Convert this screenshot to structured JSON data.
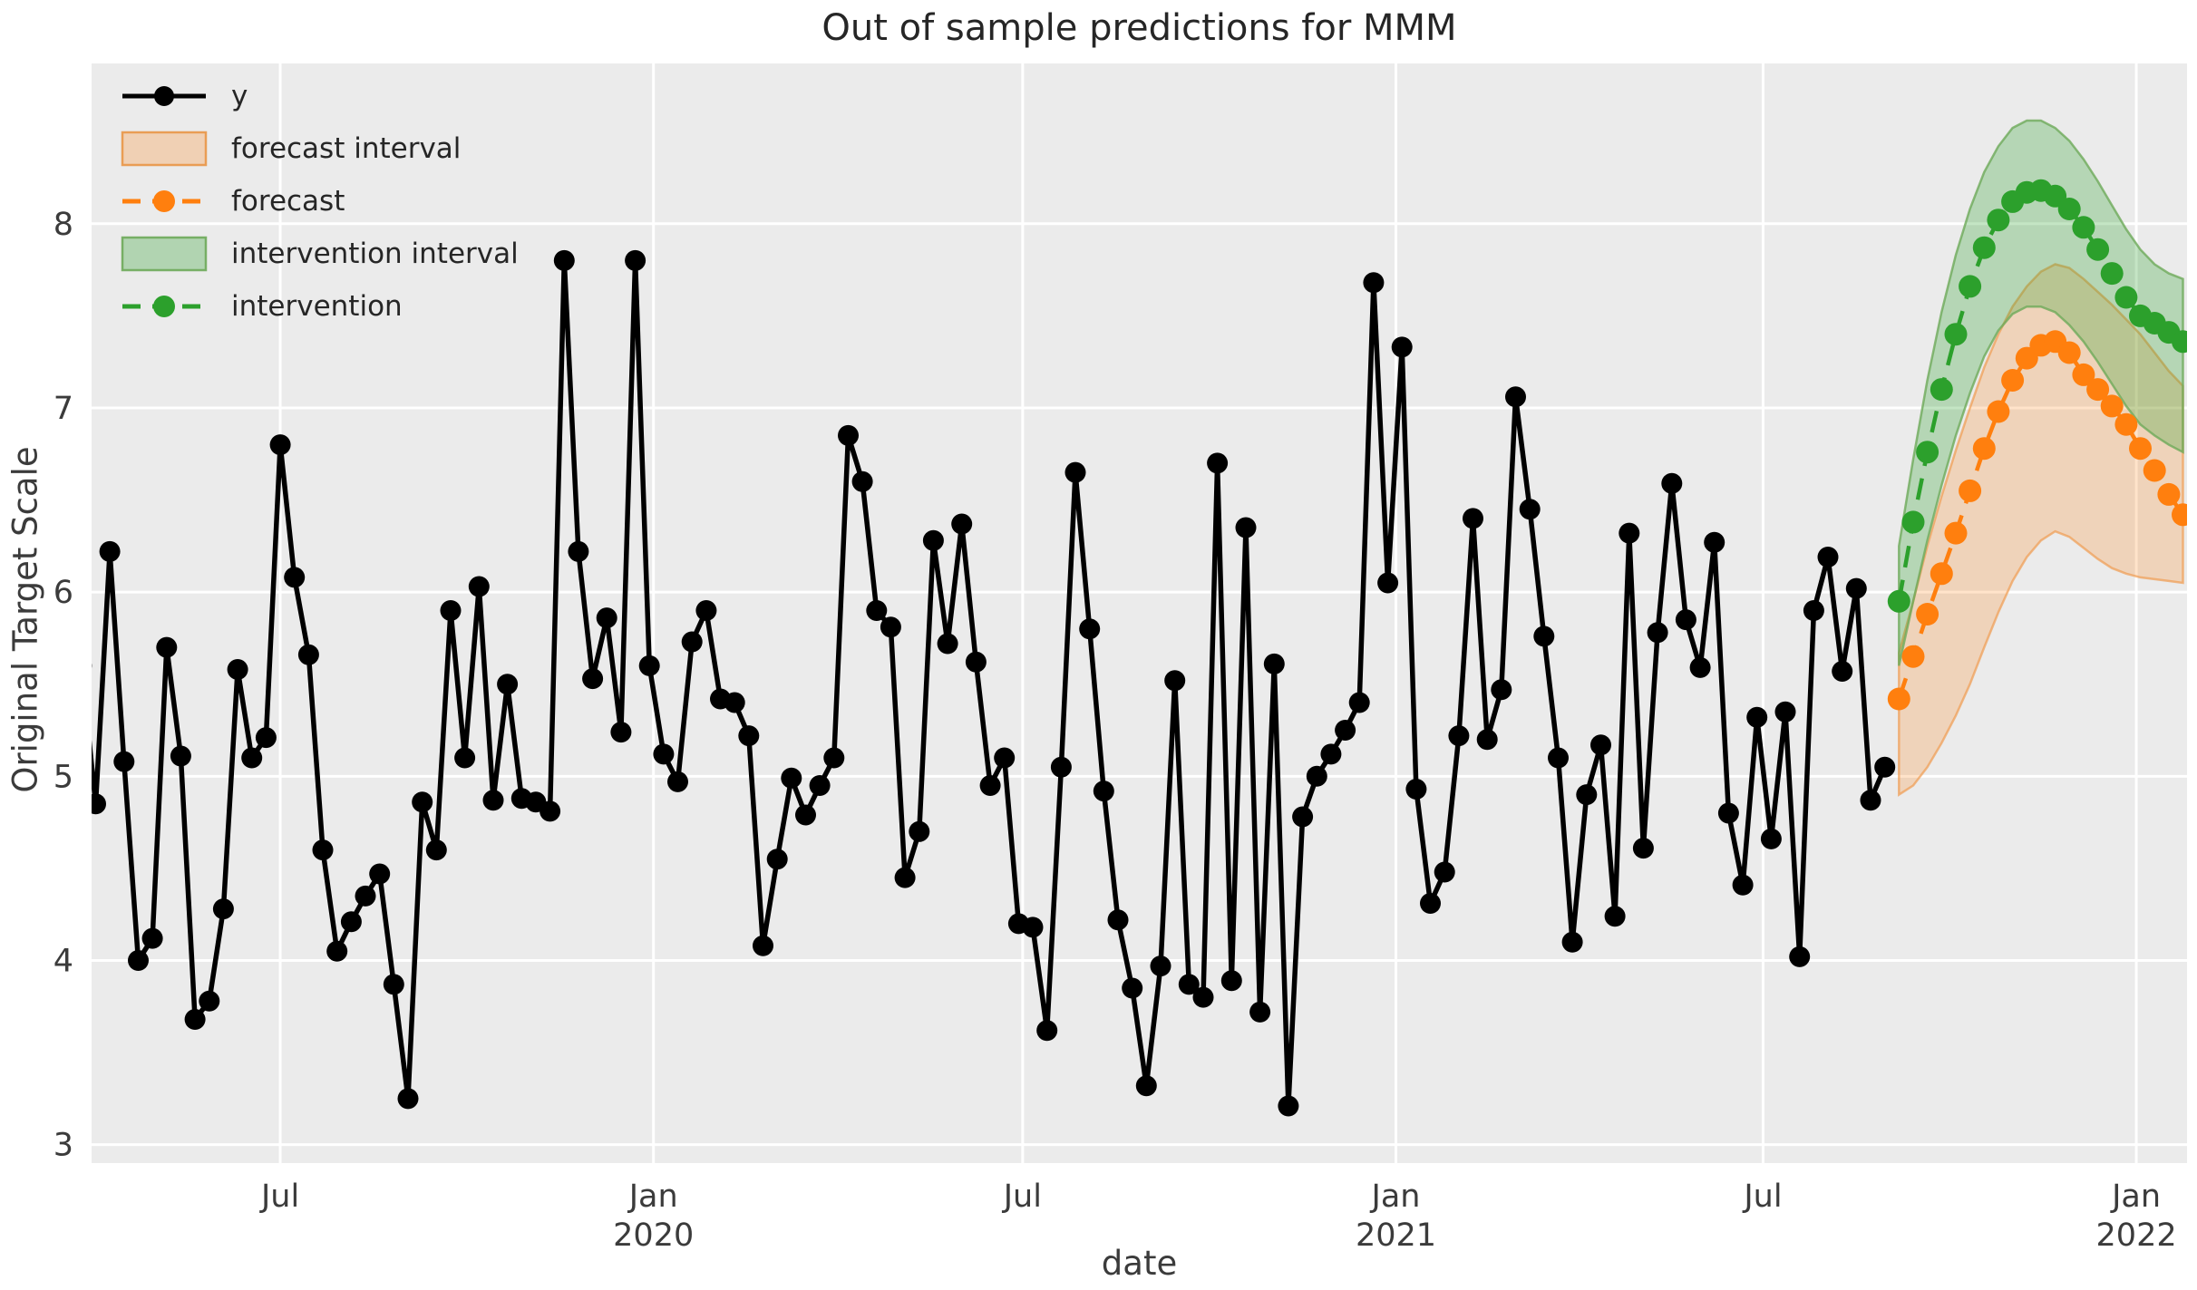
{
  "title": "Out of sample predictions for MMM",
  "legend": {
    "items": [
      {
        "label": "y",
        "type": "line-marker",
        "color": "#000000"
      },
      {
        "label": "forecast interval",
        "type": "patch",
        "fill": "rgba(255,127,14,0.25)",
        "edge": "rgba(233,150,71,0.9)"
      },
      {
        "label": "forecast",
        "type": "dash-marker",
        "color": "#ff7f0e"
      },
      {
        "label": "intervention interval",
        "type": "patch",
        "fill": "rgba(44,160,44,0.3)",
        "edge": "rgba(110,170,90,0.9)"
      },
      {
        "label": "intervention",
        "type": "dash-marker",
        "color": "#2ca02c"
      }
    ]
  },
  "colors": {
    "figure_background": "#ffffff",
    "plot_background": "#ebebeb",
    "gridline": "#ffffff",
    "observed": "#000000",
    "forecast": "#ff7f0e",
    "intervention": "#2ca02c",
    "forecast_band_fill": "rgba(255,127,14,0.22)",
    "forecast_band_edge": "rgba(240,150,70,0.65)",
    "intervention_band_fill": "rgba(44,160,44,0.28)",
    "intervention_band_edge": "rgba(110,170,90,0.8)",
    "text": "#3b3b3b",
    "title_text": "#262626"
  },
  "chart_data": {
    "type": "line",
    "title": "Out of sample predictions for MMM",
    "xlabel": "date",
    "ylabel": "Original Target Scale",
    "xlim": [
      "2019-03-30",
      "2022-01-26"
    ],
    "ylim": [
      2.9,
      8.87
    ],
    "grid": true,
    "legend_position": "upper left",
    "x_ticks": [
      {
        "date": "2019-07-01",
        "lines": [
          "Jul"
        ]
      },
      {
        "date": "2020-01-01",
        "lines": [
          "Jan",
          "2020"
        ]
      },
      {
        "date": "2020-07-01",
        "lines": [
          "Jul"
        ]
      },
      {
        "date": "2021-01-01",
        "lines": [
          "Jan",
          "2021"
        ]
      },
      {
        "date": "2021-07-01",
        "lines": [
          "Jul"
        ]
      },
      {
        "date": "2022-01-01",
        "lines": [
          "Jan",
          "2022"
        ]
      }
    ],
    "y_ticks": [
      3,
      4,
      5,
      6,
      7,
      8
    ],
    "series": [
      {
        "name": "y",
        "style": "solid-marker",
        "start": "2019-03-25",
        "freq_days": 7,
        "values": [
          5.6,
          4.85,
          6.22,
          5.08,
          4.0,
          4.12,
          5.7,
          5.11,
          3.68,
          3.78,
          4.28,
          5.58,
          5.1,
          5.21,
          6.8,
          6.08,
          5.66,
          4.6,
          4.05,
          4.21,
          4.35,
          4.47,
          3.87,
          3.25,
          4.86,
          4.6,
          5.9,
          5.1,
          6.03,
          4.87,
          5.5,
          4.88,
          4.86,
          4.81,
          7.8,
          6.22,
          5.53,
          5.86,
          5.24,
          7.8,
          5.6,
          5.12,
          4.97,
          5.73,
          5.9,
          5.42,
          5.4,
          5.22,
          4.08,
          4.55,
          4.99,
          4.79,
          4.95,
          5.1,
          6.85,
          6.6,
          5.9,
          5.81,
          4.45,
          4.7,
          6.28,
          5.72,
          6.37,
          5.62,
          4.95,
          5.1,
          4.2,
          4.18,
          3.62,
          5.05,
          6.65,
          5.8,
          4.92,
          4.22,
          3.85,
          3.32,
          3.97,
          5.52,
          3.87,
          3.8,
          6.7,
          3.89,
          6.35,
          3.72,
          5.61,
          3.21,
          4.78,
          5.0,
          5.12,
          5.25,
          5.4,
          7.68,
          6.05,
          7.33,
          4.93,
          4.31,
          4.48,
          5.22,
          6.4,
          5.2,
          5.47,
          7.06,
          6.45,
          5.76,
          5.1,
          4.1,
          4.9,
          5.17,
          4.24,
          6.32,
          4.61,
          5.78,
          6.59,
          5.85,
          5.59,
          6.27,
          4.8,
          4.41,
          5.32,
          4.66,
          5.35,
          4.02,
          5.9,
          6.19,
          5.57,
          6.02,
          4.87,
          5.05
        ]
      },
      {
        "name": "forecast",
        "style": "dashed-marker",
        "start": "2021-09-06",
        "freq_days": 7,
        "values": [
          5.42,
          5.65,
          5.88,
          6.1,
          6.32,
          6.55,
          6.78,
          6.98,
          7.15,
          7.27,
          7.34,
          7.36,
          7.3,
          7.18,
          7.1,
          7.01,
          6.91,
          6.78,
          6.66,
          6.53,
          6.42
        ]
      },
      {
        "name": "intervention",
        "style": "dashed-marker",
        "start": "2021-09-06",
        "freq_days": 7,
        "values": [
          5.95,
          6.38,
          6.76,
          7.1,
          7.4,
          7.66,
          7.87,
          8.02,
          8.12,
          8.17,
          8.18,
          8.15,
          8.08,
          7.98,
          7.86,
          7.73,
          7.6,
          7.5,
          7.46,
          7.41,
          7.36
        ]
      }
    ],
    "bands": [
      {
        "name": "forecast interval",
        "start": "2021-09-06",
        "freq_days": 7,
        "lower": [
          4.9,
          4.95,
          5.05,
          5.18,
          5.33,
          5.5,
          5.7,
          5.89,
          6.06,
          6.19,
          6.28,
          6.33,
          6.3,
          6.24,
          6.18,
          6.13,
          6.1,
          6.08,
          6.07,
          6.06,
          6.05
        ],
        "upper": [
          5.67,
          5.95,
          6.25,
          6.52,
          6.77,
          7.0,
          7.22,
          7.4,
          7.55,
          7.66,
          7.74,
          7.78,
          7.76,
          7.7,
          7.63,
          7.56,
          7.48,
          7.4,
          7.3,
          7.2,
          7.12
        ]
      },
      {
        "name": "intervention interval",
        "start": "2021-09-06",
        "freq_days": 7,
        "lower": [
          5.6,
          5.95,
          6.28,
          6.58,
          6.85,
          7.08,
          7.28,
          7.42,
          7.51,
          7.55,
          7.55,
          7.52,
          7.45,
          7.36,
          7.25,
          7.13,
          7.01,
          6.91,
          6.85,
          6.8,
          6.76
        ],
        "upper": [
          6.25,
          6.72,
          7.15,
          7.52,
          7.83,
          8.08,
          8.28,
          8.42,
          8.52,
          8.56,
          8.56,
          8.52,
          8.45,
          8.35,
          8.23,
          8.1,
          7.97,
          7.86,
          7.78,
          7.73,
          7.7
        ]
      }
    ]
  }
}
